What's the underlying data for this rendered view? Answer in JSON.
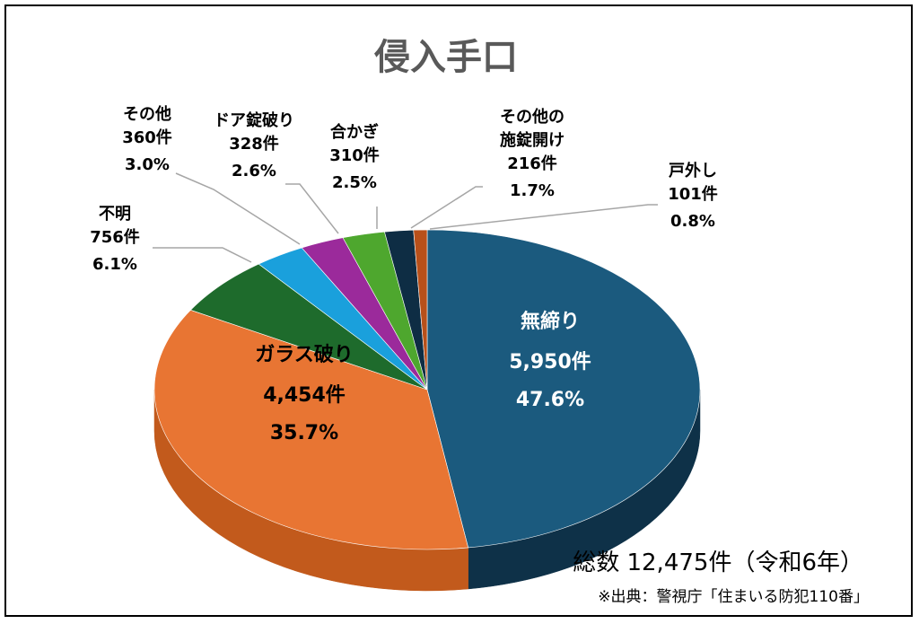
{
  "chart_data": {
    "type": "pie",
    "title": "侵入手口",
    "slices": [
      {
        "name": "無締り",
        "count_label": "5,950件",
        "value": 47.6,
        "pct_label": "47.6%",
        "color": "#1B5A7E",
        "side": "#0E3148",
        "label_color": "#ffffff"
      },
      {
        "name": "ガラス破り",
        "count_label": "4,454件",
        "value": 35.7,
        "pct_label": "35.7%",
        "color": "#E87533",
        "side": "#C25A1C",
        "label_color": "#000000"
      },
      {
        "name": "不明",
        "count_label": "756件",
        "value": 6.1,
        "pct_label": "6.1%",
        "color": "#1E6B2C",
        "side": "#13461C",
        "label_color": "#000000"
      },
      {
        "name": "その他",
        "count_label": "360件",
        "value": 3.0,
        "pct_label": "3.0%",
        "color": "#1AA0DC",
        "side": "#1078A8",
        "label_color": "#000000"
      },
      {
        "name": "ドア錠破り",
        "count_label": "328件",
        "value": 2.6,
        "pct_label": "2.6%",
        "color": "#9B2A9B",
        "side": "#6E1C6E",
        "label_color": "#000000"
      },
      {
        "name": "合かぎ",
        "count_label": "310件",
        "value": 2.5,
        "pct_label": "2.5%",
        "color": "#4EA72E",
        "side": "#357A1E",
        "label_color": "#000000"
      },
      {
        "name": "その他の施錠開け",
        "name_lines": [
          "その他の",
          "施錠開け"
        ],
        "count_label": "216件",
        "value": 1.7,
        "pct_label": "1.7%",
        "color": "#0E2D44",
        "side": "#081B2A",
        "label_color": "#000000"
      },
      {
        "name": "戸外し",
        "count_label": "101件",
        "value": 0.8,
        "pct_label": "0.8%",
        "color": "#B8501A",
        "side": "#8A3A10",
        "label_color": "#000000"
      }
    ],
    "total_text": "総数 12,475件（令和6年）",
    "source_text": "※出典：警視庁「住まいる防犯110番」"
  }
}
